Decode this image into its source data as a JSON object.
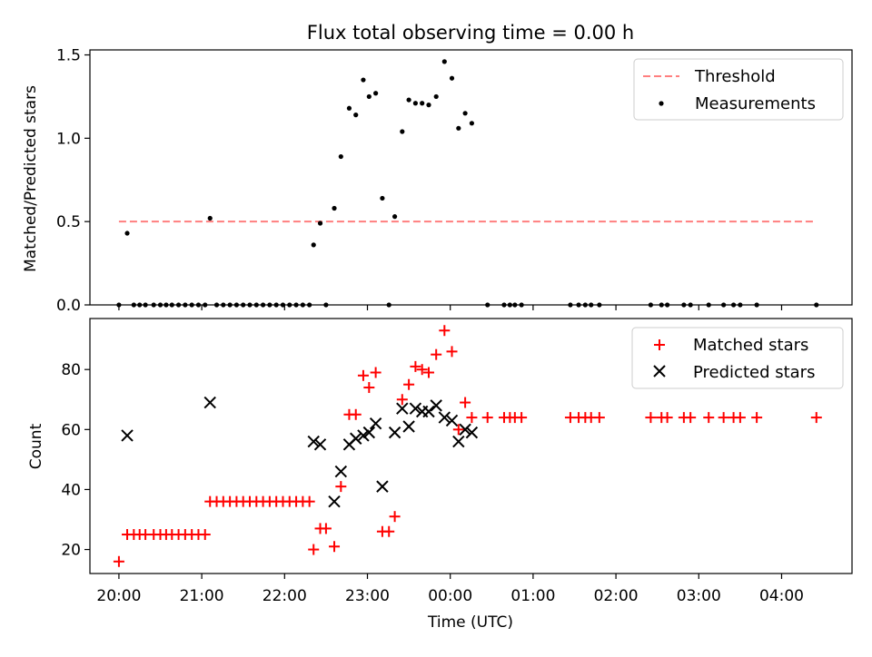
{
  "colors": {
    "matched": "#ff0000",
    "predicted": "#000000",
    "threshold": "#ff7f7f",
    "measurement": "#000000"
  },
  "chart_data": [
    {
      "type": "scatter",
      "title": "Flux total observing time = 0.00 h",
      "xlabel": "",
      "ylabel": "Matched/Predicted stars",
      "x_unit": "hours after 20:00 UTC",
      "xlim": [
        -0.35,
        8.85
      ],
      "ylim": [
        0,
        1.53
      ],
      "yticks": [
        "0.0",
        "0.5",
        "1.0",
        "1.5"
      ],
      "legend_position": "top-right",
      "legend": [
        "Threshold",
        "Measurements"
      ],
      "threshold": {
        "name": "Threshold",
        "value": 0.5,
        "x_range": [
          0.0,
          8.4
        ],
        "style": "dashed"
      },
      "series": [
        {
          "name": "Measurements",
          "marker": "dot",
          "x": [
            0.0,
            0.1,
            0.18,
            0.25,
            0.32,
            0.42,
            0.5,
            0.57,
            0.64,
            0.72,
            0.8,
            0.88,
            0.96,
            1.04,
            1.1,
            1.18,
            1.26,
            1.34,
            1.42,
            1.5,
            1.58,
            1.66,
            1.74,
            1.82,
            1.9,
            1.98,
            2.06,
            2.14,
            2.22,
            2.3,
            2.35,
            2.43,
            2.5,
            2.6,
            2.68,
            2.78,
            2.86,
            2.95,
            3.02,
            3.1,
            3.18,
            3.26,
            3.33,
            3.42,
            3.5,
            3.58,
            3.66,
            3.74,
            3.83,
            3.93,
            4.02,
            4.1,
            4.18,
            4.26,
            4.45,
            4.65,
            4.72,
            4.78,
            4.86,
            5.45,
            5.55,
            5.63,
            5.7,
            5.8,
            6.42,
            6.55,
            6.62,
            6.82,
            6.9,
            7.12,
            7.3,
            7.42,
            7.5,
            7.7,
            8.42
          ],
          "y": [
            0.0,
            0.43,
            0.0,
            0.0,
            0.0,
            0.0,
            0.0,
            0.0,
            0.0,
            0.0,
            0.0,
            0.0,
            0.0,
            0.0,
            0.52,
            0.0,
            0.0,
            0.0,
            0.0,
            0.0,
            0.0,
            0.0,
            0.0,
            0.0,
            0.0,
            0.0,
            0.0,
            0.0,
            0.0,
            0.0,
            0.36,
            0.49,
            0.0,
            0.58,
            0.89,
            1.18,
            1.14,
            1.35,
            1.25,
            1.27,
            0.64,
            0.0,
            0.53,
            1.04,
            1.23,
            1.21,
            1.21,
            1.2,
            1.25,
            1.46,
            1.36,
            1.06,
            1.15,
            1.09,
            0.0,
            0.0,
            0.0,
            0.0,
            0.0,
            0.0,
            0.0,
            0.0,
            0.0,
            0.0,
            0.0,
            0.0,
            0.0,
            0.0,
            0.0,
            0.0,
            0.0,
            0.0,
            0.0,
            0.0,
            0.0
          ]
        }
      ]
    },
    {
      "type": "scatter",
      "title": "",
      "xlabel": "Time (UTC)",
      "ylabel": "Count",
      "x_unit": "hours after 20:00 UTC",
      "xlim": [
        -0.35,
        8.85
      ],
      "ylim": [
        12,
        97
      ],
      "yticks": [
        "20",
        "40",
        "60",
        "80"
      ],
      "xticks": [
        "20:00",
        "21:00",
        "22:00",
        "23:00",
        "00:00",
        "01:00",
        "02:00",
        "03:00",
        "04:00"
      ],
      "legend_position": "top-right",
      "legend": [
        "Matched stars",
        "Predicted stars"
      ],
      "series": [
        {
          "name": "Matched stars",
          "marker": "plus",
          "x": [
            0.0,
            0.1,
            0.18,
            0.25,
            0.32,
            0.42,
            0.5,
            0.57,
            0.64,
            0.72,
            0.8,
            0.88,
            0.96,
            1.04,
            1.1,
            1.18,
            1.26,
            1.34,
            1.42,
            1.5,
            1.58,
            1.66,
            1.74,
            1.82,
            1.9,
            1.98,
            2.06,
            2.14,
            2.22,
            2.3,
            2.35,
            2.43,
            2.5,
            2.6,
            2.68,
            2.78,
            2.86,
            2.95,
            3.02,
            3.1,
            3.18,
            3.26,
            3.33,
            3.42,
            3.5,
            3.58,
            3.66,
            3.74,
            3.83,
            3.93,
            4.02,
            4.1,
            4.18,
            4.26,
            4.45,
            4.65,
            4.72,
            4.78,
            4.86,
            5.45,
            5.55,
            5.63,
            5.7,
            5.8,
            6.42,
            6.55,
            6.62,
            6.82,
            6.9,
            7.12,
            7.3,
            7.42,
            7.5,
            7.7,
            8.42
          ],
          "y": [
            16,
            25,
            25,
            25,
            25,
            25,
            25,
            25,
            25,
            25,
            25,
            25,
            25,
            25,
            36,
            36,
            36,
            36,
            36,
            36,
            36,
            36,
            36,
            36,
            36,
            36,
            36,
            36,
            36,
            36,
            20,
            27,
            27,
            21,
            41,
            65,
            65,
            78,
            74,
            79,
            26,
            26,
            31,
            70,
            75,
            81,
            80,
            79,
            85,
            93,
            86,
            60,
            69,
            64,
            64,
            64,
            64,
            64,
            64,
            64,
            64,
            64,
            64,
            64,
            64,
            64,
            64,
            64,
            64,
            64,
            64,
            64,
            64,
            64,
            64
          ]
        },
        {
          "name": "Predicted stars",
          "marker": "x",
          "x": [
            0.1,
            1.1,
            2.35,
            2.43,
            2.6,
            2.68,
            2.78,
            2.86,
            2.95,
            3.02,
            3.1,
            3.18,
            3.33,
            3.42,
            3.5,
            3.58,
            3.66,
            3.74,
            3.83,
            3.93,
            4.02,
            4.1,
            4.18,
            4.26
          ],
          "y": [
            58,
            69,
            56,
            55,
            36,
            46,
            55,
            57,
            58,
            59,
            62,
            41,
            59,
            67,
            61,
            67,
            66,
            66,
            68,
            64,
            63,
            56,
            60,
            59
          ]
        }
      ]
    }
  ]
}
